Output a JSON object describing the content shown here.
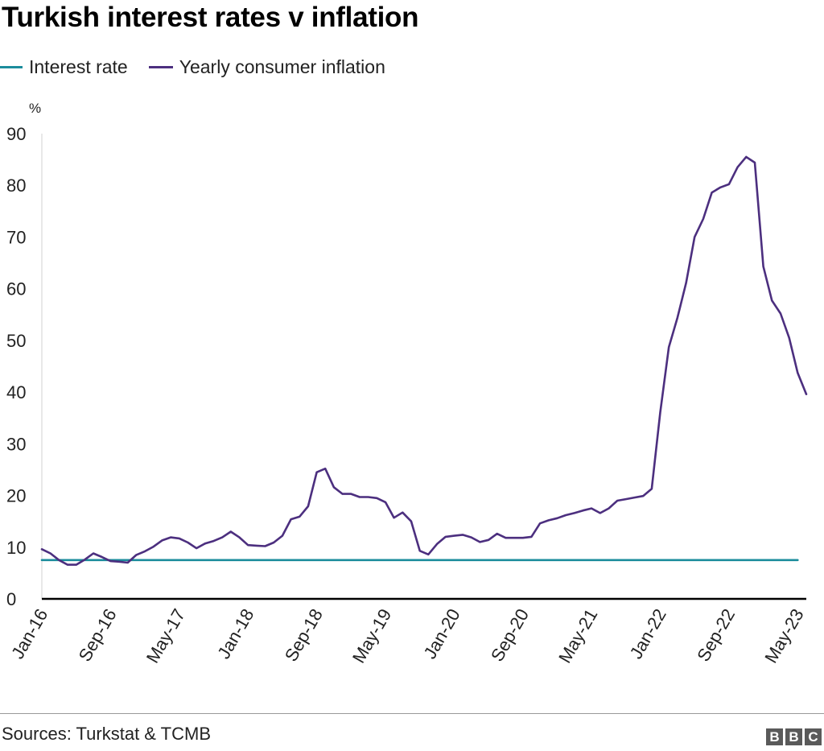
{
  "colors": {
    "interest": "#1b8c9c",
    "inflation": "#4c2f7f",
    "axis": "#000000"
  },
  "footer": {
    "source": "Sources: Turkstat & TCMB",
    "logo": [
      "B",
      "B",
      "C"
    ]
  },
  "chart_data": {
    "type": "line",
    "title": "Turkish interest rates v inflation",
    "xlabel": "",
    "ylabel": "%",
    "ylim": [
      0,
      90
    ],
    "yticks": [
      0,
      10,
      20,
      30,
      40,
      50,
      60,
      70,
      80,
      90
    ],
    "x_tick_labels": [
      "Jan-16",
      "Sep-16",
      "May-17",
      "Jan-18",
      "Sep-18",
      "May-19",
      "Jan-20",
      "Sep-20",
      "May-21",
      "Jan-22",
      "Sep-22",
      "May-23"
    ],
    "x_tick_every": 8,
    "grid": false,
    "legend_position": "top-left",
    "series": [
      {
        "name": "Interest rate",
        "key": "interest",
        "values": [
          7.5,
          7.5,
          7.5,
          7.5,
          7.5,
          7.5,
          7.5,
          7.5,
          7.5,
          7.5,
          7.5,
          7.5,
          7.5,
          7.5,
          7.5,
          7.5,
          7.5,
          7.5,
          7.5,
          7.5,
          7.5,
          7.5,
          7.5,
          7.5,
          7.5,
          7.5,
          7.5,
          7.5,
          7.5,
          7.5,
          7.5,
          7.5,
          7.5,
          7.5,
          7.5,
          7.5,
          7.5,
          7.5,
          7.5,
          7.5,
          7.5,
          7.5,
          7.5,
          7.5,
          7.5,
          7.5,
          7.5,
          7.5,
          7.5,
          7.5,
          7.5,
          7.5,
          7.5,
          7.5,
          7.5,
          7.5,
          7.5,
          7.5,
          7.5,
          7.5,
          7.5,
          7.5,
          7.5,
          7.5,
          7.5,
          7.5,
          7.5,
          7.5,
          7.5,
          7.5,
          7.5,
          7.5,
          7.5,
          7.5,
          7.5,
          7.5,
          7.5,
          7.5,
          7.5,
          7.5,
          7.5,
          7.5,
          7.5,
          7.5,
          7.5,
          7.5,
          7.5,
          7.5,
          7.5
        ]
      },
      {
        "name": "Yearly consumer inflation",
        "key": "inflation",
        "values": [
          9.6,
          8.8,
          7.5,
          6.6,
          6.6,
          7.6,
          8.8,
          8.1,
          7.3,
          7.2,
          7.0,
          8.5,
          9.2,
          10.1,
          11.3,
          11.9,
          11.7,
          10.9,
          9.8,
          10.7,
          11.2,
          11.9,
          13.0,
          11.9,
          10.4,
          10.3,
          10.2,
          10.9,
          12.2,
          15.4,
          15.9,
          17.9,
          24.5,
          25.2,
          21.6,
          20.3,
          20.3,
          19.7,
          19.7,
          19.5,
          18.7,
          15.7,
          16.7,
          15.0,
          9.3,
          8.6,
          10.6,
          12.0,
          12.2,
          12.4,
          11.9,
          11.0,
          11.4,
          12.6,
          11.8,
          11.8,
          11.8,
          12.0,
          14.6,
          15.2,
          15.6,
          16.2,
          16.6,
          17.1,
          17.5,
          16.6,
          17.5,
          19.0,
          19.3,
          19.6,
          19.9,
          21.3,
          36.1,
          48.7,
          54.4,
          61.1,
          70.0,
          73.5,
          78.6,
          79.6,
          80.2,
          83.5,
          85.5,
          84.4,
          64.3,
          57.7,
          55.2,
          50.5,
          43.7,
          39.6
        ]
      }
    ]
  }
}
